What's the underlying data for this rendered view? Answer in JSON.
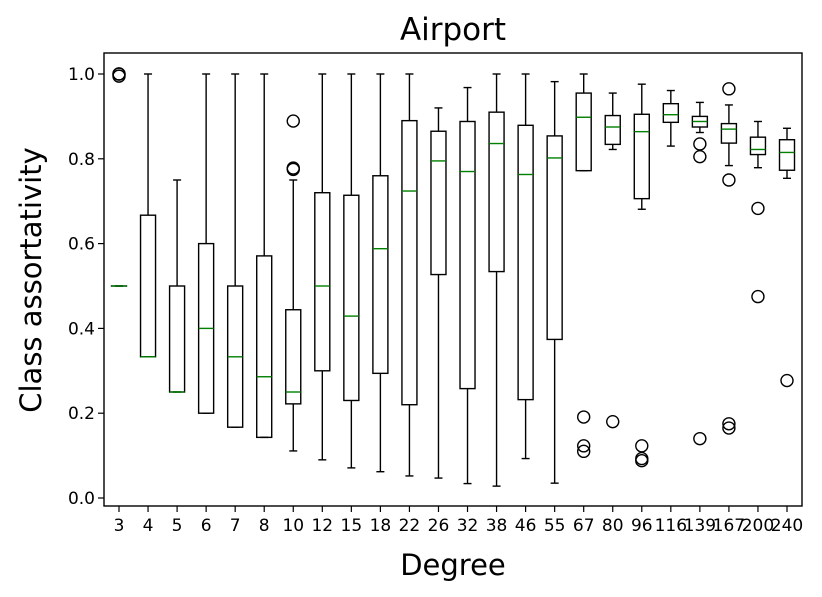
{
  "chart_data": {
    "type": "box",
    "title": "Airport",
    "xlabel": "Degree",
    "ylabel": "Class assortativity",
    "ylim": [
      -0.02,
      1.05
    ],
    "yticks": [
      "0.0",
      "0.2",
      "0.4",
      "0.6",
      "0.8",
      "1.0"
    ],
    "grid": false,
    "colors": {
      "box": "#000000",
      "median": "#007f00",
      "outlier": "#000000"
    },
    "categories": [
      "3",
      "4",
      "5",
      "6",
      "7",
      "8",
      "10",
      "12",
      "15",
      "18",
      "22",
      "26",
      "32",
      "38",
      "46",
      "55",
      "67",
      "80",
      "96",
      "116",
      "139",
      "167",
      "200",
      "240"
    ],
    "boxes": [
      {
        "category": "3",
        "whisker_low": 0.5,
        "q1": 0.5,
        "median": 0.5,
        "q3": 0.5,
        "whisker_high": 0.5,
        "outliers": [
          1.0,
          1.0,
          0.995
        ]
      },
      {
        "category": "4",
        "whisker_low": 0.333,
        "q1": 0.333,
        "median": 0.333,
        "q3": 0.667,
        "whisker_high": 1.0,
        "outliers": []
      },
      {
        "category": "5",
        "whisker_low": 0.25,
        "q1": 0.25,
        "median": 0.25,
        "q3": 0.5,
        "whisker_high": 0.75,
        "outliers": []
      },
      {
        "category": "6",
        "whisker_low": 0.2,
        "q1": 0.2,
        "median": 0.4,
        "q3": 0.6,
        "whisker_high": 1.0,
        "outliers": []
      },
      {
        "category": "7",
        "whisker_low": 0.167,
        "q1": 0.167,
        "median": 0.333,
        "q3": 0.5,
        "whisker_high": 1.0,
        "outliers": []
      },
      {
        "category": "8",
        "whisker_low": 0.143,
        "q1": 0.143,
        "median": 0.286,
        "q3": 0.571,
        "whisker_high": 1.0,
        "outliers": []
      },
      {
        "category": "10",
        "whisker_low": 0.111,
        "q1": 0.222,
        "median": 0.25,
        "q3": 0.444,
        "whisker_high": 0.75,
        "outliers": [
          0.889,
          0.778,
          0.775
        ]
      },
      {
        "category": "12",
        "whisker_low": 0.09,
        "q1": 0.3,
        "median": 0.5,
        "q3": 0.72,
        "whisker_high": 1.0,
        "outliers": []
      },
      {
        "category": "15",
        "whisker_low": 0.071,
        "q1": 0.23,
        "median": 0.429,
        "q3": 0.714,
        "whisker_high": 1.0,
        "outliers": []
      },
      {
        "category": "18",
        "whisker_low": 0.062,
        "q1": 0.294,
        "median": 0.588,
        "q3": 0.76,
        "whisker_high": 1.0,
        "outliers": []
      },
      {
        "category": "22",
        "whisker_low": 0.052,
        "q1": 0.22,
        "median": 0.724,
        "q3": 0.89,
        "whisker_high": 1.0,
        "outliers": []
      },
      {
        "category": "26",
        "whisker_low": 0.047,
        "q1": 0.527,
        "median": 0.795,
        "q3": 0.865,
        "whisker_high": 0.92,
        "outliers": []
      },
      {
        "category": "32",
        "whisker_low": 0.034,
        "q1": 0.258,
        "median": 0.77,
        "q3": 0.888,
        "whisker_high": 0.968,
        "outliers": []
      },
      {
        "category": "38",
        "whisker_low": 0.028,
        "q1": 0.534,
        "median": 0.836,
        "q3": 0.91,
        "whisker_high": 1.0,
        "outliers": []
      },
      {
        "category": "46",
        "whisker_low": 0.093,
        "q1": 0.232,
        "median": 0.763,
        "q3": 0.879,
        "whisker_high": 1.0,
        "outliers": []
      },
      {
        "category": "55",
        "whisker_low": 0.035,
        "q1": 0.374,
        "median": 0.802,
        "q3": 0.854,
        "whisker_high": 0.982,
        "outliers": []
      },
      {
        "category": "67",
        "whisker_low": 0.772,
        "q1": 0.772,
        "median": 0.898,
        "q3": 0.955,
        "whisker_high": 1.0,
        "outliers": [
          0.191,
          0.123,
          0.11
        ]
      },
      {
        "category": "80",
        "whisker_low": 0.822,
        "q1": 0.834,
        "median": 0.875,
        "q3": 0.902,
        "whisker_high": 0.955,
        "outliers": [
          0.18
        ]
      },
      {
        "category": "96",
        "whisker_low": 0.681,
        "q1": 0.706,
        "median": 0.864,
        "q3": 0.905,
        "whisker_high": 0.976,
        "outliers": [
          0.123,
          0.093,
          0.088
        ]
      },
      {
        "category": "116",
        "whisker_low": 0.83,
        "q1": 0.886,
        "median": 0.904,
        "q3": 0.93,
        "whisker_high": 0.961,
        "outliers": []
      },
      {
        "category": "139",
        "whisker_low": 0.862,
        "q1": 0.875,
        "median": 0.888,
        "q3": 0.9,
        "whisker_high": 0.933,
        "outliers": [
          0.835,
          0.805,
          0.14
        ]
      },
      {
        "category": "167",
        "whisker_low": 0.784,
        "q1": 0.837,
        "median": 0.87,
        "q3": 0.883,
        "whisker_high": 0.927,
        "outliers": [
          0.965,
          0.75,
          0.175,
          0.165
        ]
      },
      {
        "category": "200",
        "whisker_low": 0.779,
        "q1": 0.81,
        "median": 0.822,
        "q3": 0.851,
        "whisker_high": 0.888,
        "outliers": [
          0.683,
          0.475
        ]
      },
      {
        "category": "240",
        "whisker_low": 0.754,
        "q1": 0.773,
        "median": 0.815,
        "q3": 0.845,
        "whisker_high": 0.872,
        "outliers": [
          0.277
        ]
      }
    ]
  }
}
